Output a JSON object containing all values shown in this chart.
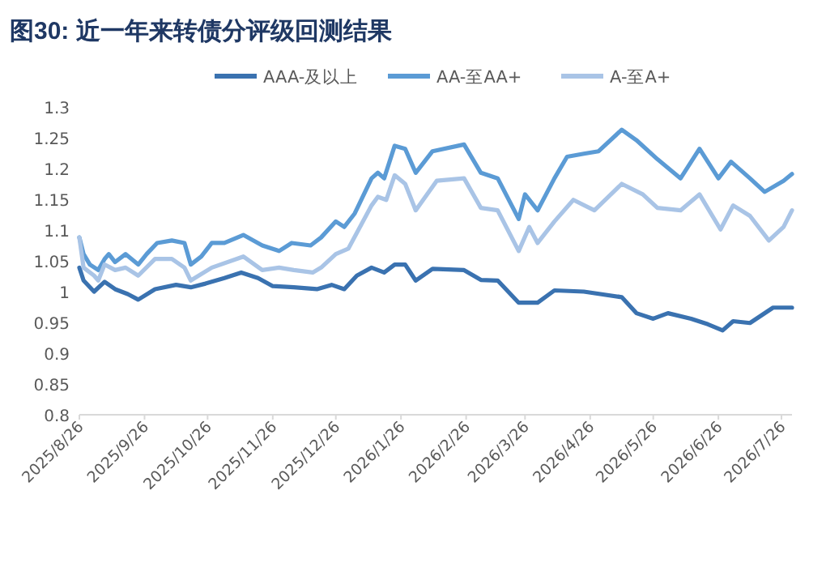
{
  "chart_data": {
    "type": "line",
    "title": "图30: 近一年来转债分评级回测结果",
    "legend": "top",
    "ylim": [
      0.8,
      1.3
    ],
    "yticks": [
      0.8,
      0.85,
      0.9,
      0.95,
      1,
      1.05,
      1.1,
      1.15,
      1.2,
      1.25,
      1.3
    ],
    "xlim": [
      "2025-08-26",
      "2026-07-31"
    ],
    "xticks": [
      {
        "value": "2025-08-26",
        "label": "2025/8/26"
      },
      {
        "value": "2025-09-26",
        "label": "2025/9/26"
      },
      {
        "value": "2025-10-26",
        "label": "2025/10/26"
      },
      {
        "value": "2025-11-26",
        "label": "2025/11/26"
      },
      {
        "value": "2025-12-26",
        "label": "2025/12/26"
      },
      {
        "value": "2026-01-26",
        "label": "2026/1/26"
      },
      {
        "value": "2026-02-26",
        "label": "2026/2/26"
      },
      {
        "value": "2026-03-26",
        "label": "2026/3/26"
      },
      {
        "value": "2026-04-26",
        "label": "2026/4/26"
      },
      {
        "value": "2026-05-26",
        "label": "2026/5/26"
      },
      {
        "value": "2026-06-26",
        "label": "2026/6/26"
      },
      {
        "value": "2026-07-26",
        "label": "2026/7/26"
      }
    ],
    "series": [
      {
        "name": "AAA-及以上",
        "color": "#3a72b0",
        "x": [
          "2025-08-26",
          "2025-08-28",
          "2025-09-02",
          "2025-09-07",
          "2025-09-12",
          "2025-09-18",
          "2025-09-23",
          "2025-10-01",
          "2025-10-11",
          "2025-10-18",
          "2025-10-25",
          "2025-11-03",
          "2025-11-11",
          "2025-11-19",
          "2025-11-26",
          "2025-12-06",
          "2025-12-17",
          "2025-12-24",
          "2025-12-30",
          "2026-01-05",
          "2026-01-12",
          "2026-01-18",
          "2026-01-23",
          "2026-01-28",
          "2026-02-02",
          "2026-02-10",
          "2026-02-25",
          "2026-03-05",
          "2026-03-13",
          "2026-03-23",
          "2026-04-01",
          "2026-04-09",
          "2026-04-23",
          "2026-05-11",
          "2026-05-18",
          "2026-05-26",
          "2026-06-02",
          "2026-06-13",
          "2026-06-21",
          "2026-06-28",
          "2026-07-03",
          "2026-07-11",
          "2026-07-22",
          "2026-07-31"
        ],
        "values": [
          1.039,
          1.018,
          1.0,
          1.016,
          1.004,
          0.996,
          0.987,
          1.004,
          1.011,
          1.007,
          1.013,
          1.022,
          1.031,
          1.022,
          1.009,
          1.007,
          1.004,
          1.011,
          1.004,
          1.026,
          1.039,
          1.031,
          1.044,
          1.044,
          1.018,
          1.037,
          1.035,
          1.019,
          1.018,
          0.982,
          0.982,
          1.002,
          1.0,
          0.991,
          0.965,
          0.956,
          0.965,
          0.956,
          0.947,
          0.937,
          0.952,
          0.949,
          0.974,
          0.974
        ]
      },
      {
        "name": "AA-至AA+",
        "color": "#5b9bd5",
        "x": [
          "2025-08-26",
          "2025-08-28",
          "2025-08-31",
          "2025-09-04",
          "2025-09-07",
          "2025-09-09",
          "2025-09-12",
          "2025-09-17",
          "2025-09-23",
          "2025-09-27",
          "2025-10-02",
          "2025-10-09",
          "2025-10-15",
          "2025-10-18",
          "2025-10-23",
          "2025-10-28",
          "2025-11-03",
          "2025-11-12",
          "2025-11-21",
          "2025-11-29",
          "2025-12-05",
          "2025-12-14",
          "2025-12-19",
          "2025-12-26",
          "2025-12-30",
          "2026-01-04",
          "2026-01-12",
          "2026-01-15",
          "2026-01-18",
          "2026-01-23",
          "2026-01-28",
          "2026-02-02",
          "2026-02-10",
          "2026-02-25",
          "2026-03-05",
          "2026-03-13",
          "2026-03-23",
          "2026-03-26",
          "2026-04-01",
          "2026-04-09",
          "2026-04-15",
          "2026-04-23",
          "2026-04-30",
          "2026-05-11",
          "2026-05-18",
          "2026-05-28",
          "2026-06-08",
          "2026-06-17",
          "2026-06-26",
          "2026-07-02",
          "2026-07-11",
          "2026-07-18",
          "2026-07-27",
          "2026-07-31"
        ],
        "values": [
          1.088,
          1.061,
          1.044,
          1.035,
          1.053,
          1.061,
          1.048,
          1.061,
          1.044,
          1.061,
          1.079,
          1.083,
          1.079,
          1.044,
          1.057,
          1.079,
          1.079,
          1.092,
          1.075,
          1.066,
          1.079,
          1.075,
          1.088,
          1.114,
          1.105,
          1.127,
          1.184,
          1.193,
          1.184,
          1.237,
          1.232,
          1.193,
          1.228,
          1.239,
          1.193,
          1.184,
          1.118,
          1.158,
          1.132,
          1.184,
          1.219,
          1.224,
          1.228,
          1.263,
          1.246,
          1.215,
          1.184,
          1.232,
          1.184,
          1.211,
          1.184,
          1.162,
          1.18,
          1.191
        ]
      },
      {
        "name": "A-至A+",
        "color": "#a9c4e6",
        "x": [
          "2025-08-26",
          "2025-08-28",
          "2025-09-02",
          "2025-09-04",
          "2025-09-07",
          "2025-09-12",
          "2025-09-17",
          "2025-09-23",
          "2025-10-01",
          "2025-10-09",
          "2025-10-15",
          "2025-10-18",
          "2025-10-28",
          "2025-11-12",
          "2025-11-21",
          "2025-11-29",
          "2025-12-06",
          "2025-12-15",
          "2025-12-19",
          "2025-12-26",
          "2026-01-01",
          "2026-01-12",
          "2026-01-15",
          "2026-01-19",
          "2026-01-23",
          "2026-01-28",
          "2026-02-02",
          "2026-02-12",
          "2026-02-25",
          "2026-03-05",
          "2026-03-13",
          "2026-03-23",
          "2026-03-28",
          "2026-04-01",
          "2026-04-09",
          "2026-04-18",
          "2026-04-28",
          "2026-05-11",
          "2026-05-21",
          "2026-05-28",
          "2026-06-08",
          "2026-06-17",
          "2026-06-27",
          "2026-07-03",
          "2026-07-11",
          "2026-07-20",
          "2026-07-27",
          "2026-07-31"
        ],
        "values": [
          1.088,
          1.039,
          1.026,
          1.018,
          1.044,
          1.035,
          1.039,
          1.026,
          1.053,
          1.053,
          1.039,
          1.018,
          1.039,
          1.057,
          1.035,
          1.039,
          1.035,
          1.031,
          1.039,
          1.061,
          1.07,
          1.14,
          1.154,
          1.149,
          1.189,
          1.175,
          1.132,
          1.18,
          1.184,
          1.136,
          1.132,
          1.066,
          1.105,
          1.079,
          1.114,
          1.149,
          1.132,
          1.175,
          1.158,
          1.136,
          1.132,
          1.158,
          1.101,
          1.14,
          1.123,
          1.083,
          1.105,
          1.132
        ]
      }
    ]
  }
}
